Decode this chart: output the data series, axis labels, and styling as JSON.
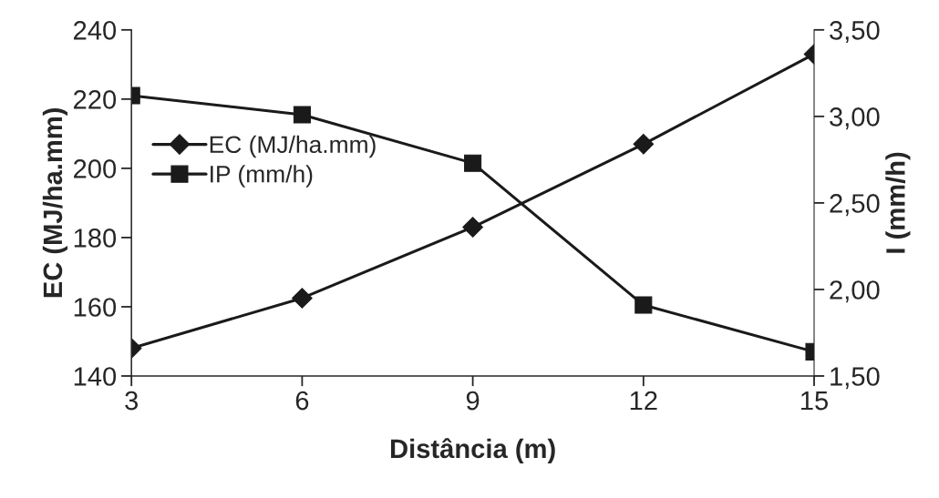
{
  "chart_data": {
    "type": "line",
    "xlabel": "Distância (m)",
    "ylabel": "EC (MJ/ha.mm)",
    "y2label": "I (mm/h)",
    "x": [
      3,
      6,
      9,
      12,
      15
    ],
    "series": [
      {
        "name": "EC (MJ/ha.mm)",
        "color": "#1a1a1a",
        "marker": "diamond",
        "values": [
          148,
          162.5,
          183,
          207,
          233
        ]
      },
      {
        "name": "IP (mm/h)",
        "color": "#1a1a1a",
        "marker": "square",
        "axis": "y2",
        "values": [
          3.12,
          3.01,
          2.73,
          1.91,
          1.64
        ]
      }
    ],
    "xlim": [
      3,
      15
    ],
    "xticks": [
      3,
      6,
      9,
      12,
      15
    ],
    "ylim": [
      140,
      240
    ],
    "yticks": [
      140,
      160,
      180,
      200,
      220,
      240
    ],
    "y2lim": [
      1.5,
      3.5
    ],
    "y2ticks": [
      {
        "value": 1.5,
        "label": "1,50"
      },
      {
        "value": 2.0,
        "label": "2,00"
      },
      {
        "value": 2.5,
        "label": "2,50"
      },
      {
        "value": 3.0,
        "label": "3,00"
      },
      {
        "value": 3.5,
        "label": "3,50"
      }
    ],
    "grid": false,
    "legend": "left",
    "line_style": "solid"
  }
}
